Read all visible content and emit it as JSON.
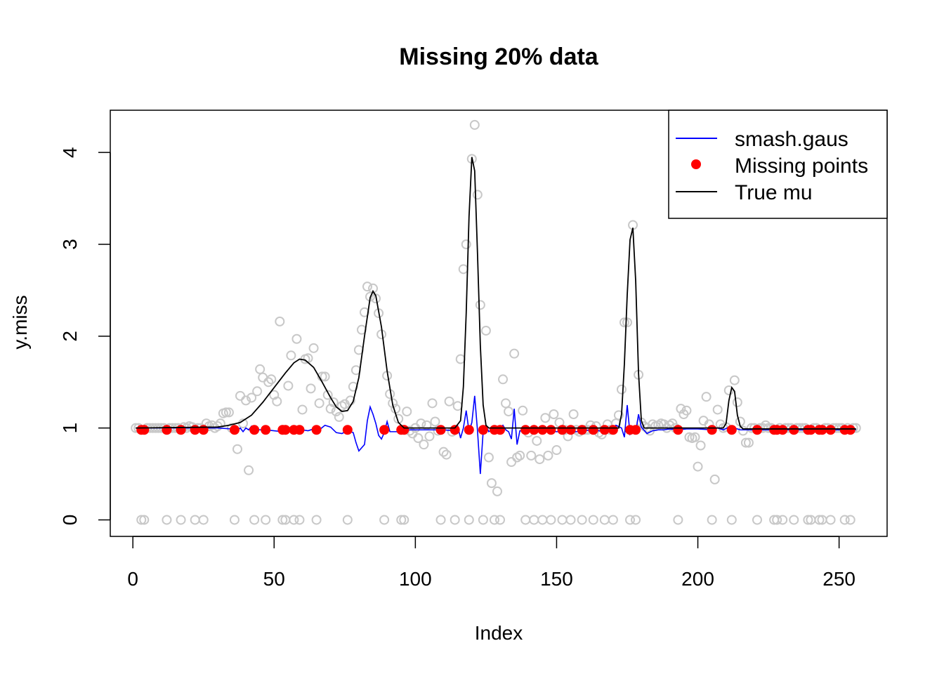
{
  "chart_data": {
    "type": "scatter",
    "title": "Missing 20% data",
    "xlabel": "Index",
    "ylabel": "y.miss",
    "xlim": [
      -8,
      267
    ],
    "ylim": [
      -0.18,
      4.46
    ],
    "x_ticks": [
      "0",
      "50",
      "100",
      "150",
      "200",
      "250"
    ],
    "y_ticks": [
      "0",
      "1",
      "2",
      "3",
      "4"
    ],
    "legend": {
      "position": "top-right",
      "entries": [
        {
          "label": "smash.gaus",
          "color": "#0000ff",
          "kind": "line"
        },
        {
          "label": "Missing points",
          "color": "#ff0000",
          "kind": "dot"
        },
        {
          "label": "True mu",
          "color": "#000000",
          "kind": "line"
        }
      ]
    },
    "observed_color": "#c8c8c8",
    "missing_x": [
      3,
      4,
      12,
      17,
      22,
      25,
      36,
      43,
      47,
      53,
      54,
      57,
      59,
      65,
      76,
      89,
      95,
      96,
      109,
      114,
      119,
      124,
      128,
      130,
      139,
      142,
      145,
      148,
      152,
      155,
      159,
      163,
      167,
      170,
      176,
      178,
      193,
      205,
      212,
      221,
      227,
      228,
      230,
      234,
      239,
      240,
      243,
      244,
      247,
      252,
      254
    ],
    "observed_points": [
      [
        1,
        1.0
      ],
      [
        2,
        1.0
      ],
      [
        5,
        1.0
      ],
      [
        6,
        1.0
      ],
      [
        7,
        1.0
      ],
      [
        8,
        1.0
      ],
      [
        9,
        1.0
      ],
      [
        10,
        1.0
      ],
      [
        11,
        1.0
      ],
      [
        13,
        1.0
      ],
      [
        14,
        1.0
      ],
      [
        15,
        1.0
      ],
      [
        16,
        1.0
      ],
      [
        18,
        1.01
      ],
      [
        19,
        1.0
      ],
      [
        20,
        1.02
      ],
      [
        21,
        1.01
      ],
      [
        23,
        1.0
      ],
      [
        24,
        1.0
      ],
      [
        26,
        1.05
      ],
      [
        27,
        1.02
      ],
      [
        28,
        1.03
      ],
      [
        29,
        1.0
      ],
      [
        30,
        1.02
      ],
      [
        31,
        1.05
      ],
      [
        32,
        1.16
      ],
      [
        33,
        1.17
      ],
      [
        34,
        1.17
      ],
      [
        35,
        1.0
      ],
      [
        37,
        0.77
      ],
      [
        38,
        1.35
      ],
      [
        39,
        1.05
      ],
      [
        40,
        1.3
      ],
      [
        41,
        0.54
      ],
      [
        42,
        1.33
      ],
      [
        44,
        1.4
      ],
      [
        45,
        1.64
      ],
      [
        46,
        1.55
      ],
      [
        48,
        1.5
      ],
      [
        49,
        1.53
      ],
      [
        50,
        1.36
      ],
      [
        51,
        1.29
      ],
      [
        52,
        2.16
      ],
      [
        55,
        1.46
      ],
      [
        56,
        1.79
      ],
      [
        58,
        1.97
      ],
      [
        60,
        1.2
      ],
      [
        61,
        1.75
      ],
      [
        62,
        1.76
      ],
      [
        63,
        1.43
      ],
      [
        64,
        1.87
      ],
      [
        66,
        1.27
      ],
      [
        67,
        1.56
      ],
      [
        68,
        1.56
      ],
      [
        69,
        1.36
      ],
      [
        70,
        1.21
      ],
      [
        71,
        1.28
      ],
      [
        72,
        1.18
      ],
      [
        73,
        1.12
      ],
      [
        74,
        1.24
      ],
      [
        75,
        1.26
      ],
      [
        77,
        1.3
      ],
      [
        78,
        1.45
      ],
      [
        79,
        1.63
      ],
      [
        80,
        1.85
      ],
      [
        81,
        2.07
      ],
      [
        82,
        2.26
      ],
      [
        83,
        2.54
      ],
      [
        84,
        2.43
      ],
      [
        85,
        2.52
      ],
      [
        86,
        2.41
      ],
      [
        87,
        2.25
      ],
      [
        88,
        2.02
      ],
      [
        90,
        1.57
      ],
      [
        91,
        1.37
      ],
      [
        92,
        1.27
      ],
      [
        93,
        1.21
      ],
      [
        94,
        1.1
      ],
      [
        97,
        1.18
      ],
      [
        98,
        0.97
      ],
      [
        99,
        0.94
      ],
      [
        100,
        1.0
      ],
      [
        101,
        0.89
      ],
      [
        102,
        1.05
      ],
      [
        103,
        0.82
      ],
      [
        104,
        1.03
      ],
      [
        105,
        0.91
      ],
      [
        106,
        1.27
      ],
      [
        107,
        1.07
      ],
      [
        108,
        0.97
      ],
      [
        110,
        0.74
      ],
      [
        111,
        0.71
      ],
      [
        112,
        1.29
      ],
      [
        113,
        0.96
      ],
      [
        115,
        1.24
      ],
      [
        116,
        1.75
      ],
      [
        117,
        2.73
      ],
      [
        118,
        3.0
      ],
      [
        120,
        3.93
      ],
      [
        121,
        4.3
      ],
      [
        122,
        3.54
      ],
      [
        123,
        2.34
      ],
      [
        125,
        2.06
      ],
      [
        126,
        0.68
      ],
      [
        127,
        0.4
      ],
      [
        129,
        0.31
      ],
      [
        131,
        1.53
      ],
      [
        132,
        1.27
      ],
      [
        133,
        1.18
      ],
      [
        134,
        0.63
      ],
      [
        135,
        1.81
      ],
      [
        136,
        0.68
      ],
      [
        137,
        0.7
      ],
      [
        138,
        1.19
      ],
      [
        140,
        0.95
      ],
      [
        141,
        0.7
      ],
      [
        143,
        0.86
      ],
      [
        144,
        0.66
      ],
      [
        146,
        1.11
      ],
      [
        147,
        0.7
      ],
      [
        149,
        1.15
      ],
      [
        150,
        0.76
      ],
      [
        151,
        1.06
      ],
      [
        153,
        0.98
      ],
      [
        154,
        0.91
      ],
      [
        156,
        1.15
      ],
      [
        157,
        0.98
      ],
      [
        158,
        0.96
      ],
      [
        160,
        0.98
      ],
      [
        161,
        0.98
      ],
      [
        162,
        1.03
      ],
      [
        164,
        1.02
      ],
      [
        165,
        0.95
      ],
      [
        166,
        0.93
      ],
      [
        168,
        1.04
      ],
      [
        169,
        0.98
      ],
      [
        171,
        1.05
      ],
      [
        172,
        1.14
      ],
      [
        173,
        1.42
      ],
      [
        174,
        2.15
      ],
      [
        175,
        2.15
      ],
      [
        177,
        3.21
      ],
      [
        179,
        1.58
      ],
      [
        180,
        1.06
      ],
      [
        181,
        1.02
      ],
      [
        182,
        1.0
      ],
      [
        183,
        0.97
      ],
      [
        184,
        1.04
      ],
      [
        185,
        1.02
      ],
      [
        186,
        1.03
      ],
      [
        187,
        1.05
      ],
      [
        188,
        1.04
      ],
      [
        189,
        1.0
      ],
      [
        190,
        1.03
      ],
      [
        191,
        1.05
      ],
      [
        192,
        1.0
      ],
      [
        194,
        1.21
      ],
      [
        195,
        1.15
      ],
      [
        196,
        1.19
      ],
      [
        197,
        0.9
      ],
      [
        198,
        0.89
      ],
      [
        199,
        0.9
      ],
      [
        200,
        0.58
      ],
      [
        201,
        0.81
      ],
      [
        202,
        1.08
      ],
      [
        203,
        1.34
      ],
      [
        204,
        1.04
      ],
      [
        206,
        0.44
      ],
      [
        207,
        1.2
      ],
      [
        208,
        1.04
      ],
      [
        209,
        1.0
      ],
      [
        210,
        1.01
      ],
      [
        211,
        1.41
      ],
      [
        213,
        1.52
      ],
      [
        214,
        1.28
      ],
      [
        215,
        1.07
      ],
      [
        216,
        0.97
      ],
      [
        217,
        0.84
      ],
      [
        218,
        0.84
      ],
      [
        219,
        1.0
      ],
      [
        220,
        1.0
      ],
      [
        222,
        1.0
      ],
      [
        223,
        1.0
      ],
      [
        224,
        1.03
      ],
      [
        225,
        1.0
      ],
      [
        226,
        1.0
      ],
      [
        229,
        1.0
      ],
      [
        231,
        1.0
      ],
      [
        232,
        1.0
      ],
      [
        233,
        1.0
      ],
      [
        235,
        1.0
      ],
      [
        236,
        1.0
      ],
      [
        237,
        1.0
      ],
      [
        238,
        1.0
      ],
      [
        241,
        1.0
      ],
      [
        242,
        1.0
      ],
      [
        245,
        1.0
      ],
      [
        246,
        1.0
      ],
      [
        248,
        1.0
      ],
      [
        249,
        1.0
      ],
      [
        250,
        1.0
      ],
      [
        251,
        1.0
      ],
      [
        253,
        1.0
      ],
      [
        255,
        1.0
      ],
      [
        256,
        1.0
      ]
    ],
    "true_mu": [
      [
        1,
        1.0
      ],
      [
        30,
        1.01
      ],
      [
        34,
        1.03
      ],
      [
        38,
        1.06
      ],
      [
        42,
        1.14
      ],
      [
        46,
        1.28
      ],
      [
        50,
        1.44
      ],
      [
        54,
        1.6
      ],
      [
        57,
        1.71
      ],
      [
        59,
        1.75
      ],
      [
        61,
        1.74
      ],
      [
        64,
        1.66
      ],
      [
        67,
        1.5
      ],
      [
        70,
        1.33
      ],
      [
        72,
        1.23
      ],
      [
        74,
        1.18
      ],
      [
        76,
        1.19
      ],
      [
        78,
        1.29
      ],
      [
        80,
        1.55
      ],
      [
        82,
        2.0
      ],
      [
        84,
        2.42
      ],
      [
        85,
        2.49
      ],
      [
        86,
        2.44
      ],
      [
        88,
        2.1
      ],
      [
        90,
        1.62
      ],
      [
        92,
        1.25
      ],
      [
        94,
        1.06
      ],
      [
        96,
        1.0
      ],
      [
        114,
        1.0
      ],
      [
        116,
        1.08
      ],
      [
        117,
        1.45
      ],
      [
        118,
        2.25
      ],
      [
        119,
        3.3
      ],
      [
        120,
        3.95
      ],
      [
        121,
        3.8
      ],
      [
        122,
        2.9
      ],
      [
        123,
        1.9
      ],
      [
        124,
        1.25
      ],
      [
        125,
        1.03
      ],
      [
        126,
        1.0
      ],
      [
        172,
        1.0
      ],
      [
        173,
        1.15
      ],
      [
        174,
        1.7
      ],
      [
        175,
        2.45
      ],
      [
        176,
        3.05
      ],
      [
        177,
        3.18
      ],
      [
        178,
        2.6
      ],
      [
        179,
        1.6
      ],
      [
        180,
        1.08
      ],
      [
        181,
        1.0
      ],
      [
        209,
        1.0
      ],
      [
        210,
        1.05
      ],
      [
        211,
        1.3
      ],
      [
        212,
        1.44
      ],
      [
        213,
        1.4
      ],
      [
        214,
        1.14
      ],
      [
        215,
        1.02
      ],
      [
        216,
        0.99
      ],
      [
        256,
        0.99
      ]
    ],
    "smash_gaus": [
      [
        1,
        1.0
      ],
      [
        30,
        1.0
      ],
      [
        35,
        0.99
      ],
      [
        37,
        0.97
      ],
      [
        38,
        1.0
      ],
      [
        39,
        0.96
      ],
      [
        40,
        1.0
      ],
      [
        41,
        0.98
      ],
      [
        42,
        1.02
      ],
      [
        43,
        0.99
      ],
      [
        45,
        0.98
      ],
      [
        47,
        0.98
      ],
      [
        50,
        0.97
      ],
      [
        53,
        0.96
      ],
      [
        56,
        0.97
      ],
      [
        60,
        0.98
      ],
      [
        62,
        0.97
      ],
      [
        64,
        0.99
      ],
      [
        66,
        0.98
      ],
      [
        68,
        1.03
      ],
      [
        70,
        1.01
      ],
      [
        72,
        0.95
      ],
      [
        74,
        0.94
      ],
      [
        76,
        0.97
      ],
      [
        78,
        0.95
      ],
      [
        79,
        0.84
      ],
      [
        80,
        0.75
      ],
      [
        82,
        0.82
      ],
      [
        83,
        1.08
      ],
      [
        84,
        1.23
      ],
      [
        85,
        1.15
      ],
      [
        86,
        1.05
      ],
      [
        87,
        0.92
      ],
      [
        88,
        0.88
      ],
      [
        89,
        0.95
      ],
      [
        90,
        1.07
      ],
      [
        91,
        0.96
      ],
      [
        93,
        0.96
      ],
      [
        95,
        0.96
      ],
      [
        97,
        0.98
      ],
      [
        100,
        0.98
      ],
      [
        110,
        0.98
      ],
      [
        114,
        0.97
      ],
      [
        115,
        1.02
      ],
      [
        116,
        0.89
      ],
      [
        117,
        1.0
      ],
      [
        118,
        1.19
      ],
      [
        119,
        0.96
      ],
      [
        120,
        1.06
      ],
      [
        121,
        1.35
      ],
      [
        122,
        0.97
      ],
      [
        123,
        0.5
      ],
      [
        124,
        0.96
      ],
      [
        125,
        1.03
      ],
      [
        126,
        0.96
      ],
      [
        128,
        1.0
      ],
      [
        130,
        1.0
      ],
      [
        131,
        1.03
      ],
      [
        132,
        0.98
      ],
      [
        133,
        0.96
      ],
      [
        134,
        0.88
      ],
      [
        135,
        1.21
      ],
      [
        136,
        0.82
      ],
      [
        137,
        0.97
      ],
      [
        139,
        0.96
      ],
      [
        145,
        0.97
      ],
      [
        150,
        0.96
      ],
      [
        155,
        0.96
      ],
      [
        158,
        0.96
      ],
      [
        160,
        0.97
      ],
      [
        162,
        0.98
      ],
      [
        165,
        0.97
      ],
      [
        168,
        0.96
      ],
      [
        171,
        1.03
      ],
      [
        173,
        1.0
      ],
      [
        174,
        0.9
      ],
      [
        175,
        1.25
      ],
      [
        176,
        0.93
      ],
      [
        177,
        0.96
      ],
      [
        178,
        0.95
      ],
      [
        179,
        1.15
      ],
      [
        180,
        1.01
      ],
      [
        182,
        0.94
      ],
      [
        184,
        0.97
      ],
      [
        186,
        0.98
      ],
      [
        188,
        0.98
      ],
      [
        190,
        0.99
      ],
      [
        193,
        0.98
      ],
      [
        196,
        0.99
      ],
      [
        200,
        0.99
      ],
      [
        205,
        0.98
      ],
      [
        207,
        1.0
      ],
      [
        209,
        0.98
      ],
      [
        211,
        1.01
      ],
      [
        213,
        1.0
      ],
      [
        215,
        0.98
      ],
      [
        220,
        0.98
      ],
      [
        230,
        0.98
      ],
      [
        240,
        0.98
      ],
      [
        256,
        0.98
      ]
    ]
  }
}
